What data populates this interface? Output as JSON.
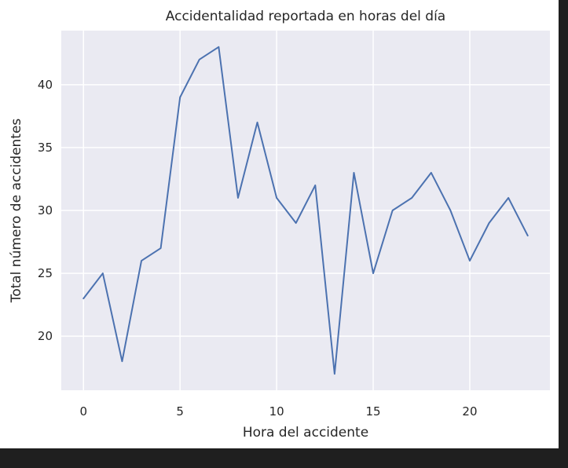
{
  "chart_data": {
    "type": "line",
    "title": "Accidentalidad reportada en horas del día",
    "xlabel": "Hora del accidente",
    "ylabel": "Total número de accidentes",
    "x": [
      0,
      1,
      2,
      3,
      4,
      5,
      6,
      7,
      8,
      9,
      10,
      11,
      12,
      13,
      14,
      15,
      16,
      17,
      18,
      19,
      20,
      21,
      22,
      23
    ],
    "y": [
      23,
      25,
      18,
      26,
      27,
      39,
      42,
      43,
      31,
      37,
      31,
      29,
      32,
      17,
      33,
      25,
      30,
      31,
      33,
      30,
      26,
      29,
      31,
      28
    ],
    "xlim": [
      -1.15,
      24.15
    ],
    "ylim": [
      15.7,
      44.3
    ],
    "xticks": [
      0,
      5,
      10,
      15,
      20
    ],
    "xtick_labels": [
      "0",
      "5",
      "10",
      "15",
      "20"
    ],
    "yticks": [
      20,
      25,
      30,
      35,
      40
    ],
    "ytick_labels": [
      "20",
      "25",
      "30",
      "35",
      "40"
    ],
    "grid": true,
    "colors": {
      "line": "#4c72b0",
      "plot_background": "#eaeaf2",
      "grid": "#ffffff"
    }
  }
}
